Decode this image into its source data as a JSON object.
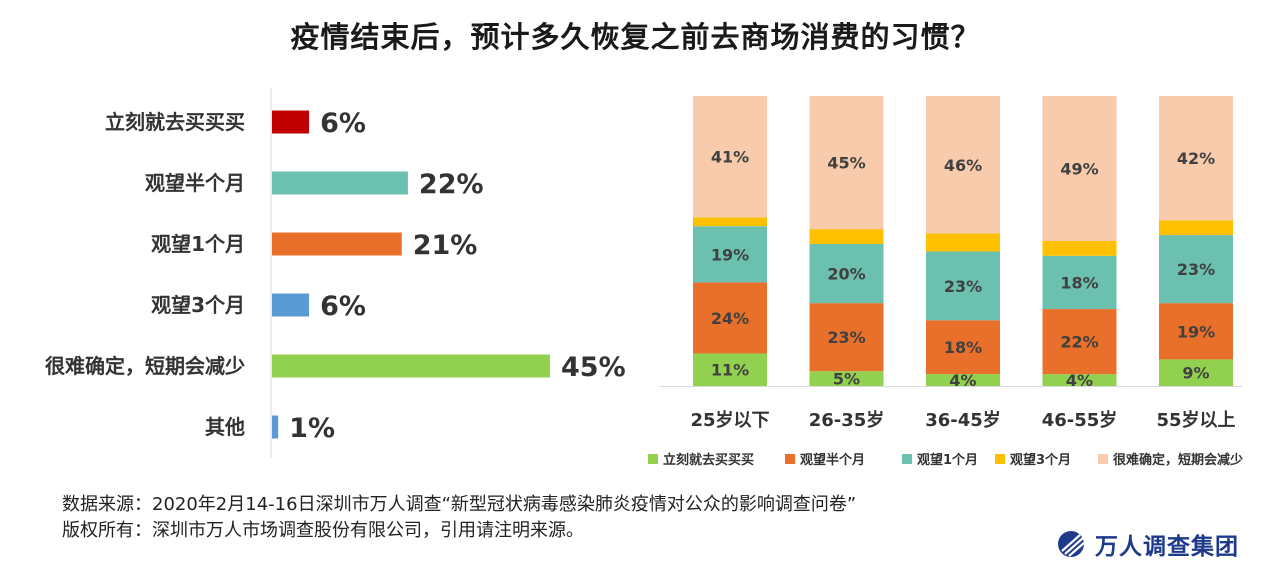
{
  "title": "疫情结束后，预计多久恢复之前去商场消费的习惯？",
  "chart_data": [
    {
      "type": "bar",
      "orientation": "horizontal",
      "categories": [
        "立刻就去买买买",
        "观望半个月",
        "观望1个月",
        "观望3个月",
        "很难确定，短期会减少",
        "其他"
      ],
      "values": [
        6,
        22,
        21,
        6,
        45,
        1
      ],
      "value_labels": [
        "6%",
        "22%",
        "21%",
        "6%",
        "45%",
        "1%"
      ],
      "colors": [
        "#C00000",
        "#6CC0B0",
        "#E8702A",
        "#5B9BD5",
        "#92D050",
        "#5B9BD5"
      ],
      "xlim": [
        0,
        45
      ],
      "grid": false
    },
    {
      "type": "bar",
      "stacked": true,
      "categories": [
        "25岁以下",
        "26-35岁",
        "36-45岁",
        "46-55岁",
        "55岁以上"
      ],
      "series": [
        {
          "name": "立刻就去买买买",
          "color": "#92D050",
          "values": [
            11,
            5,
            4,
            4,
            9
          ],
          "labels": [
            "11%",
            "5%",
            "4%",
            "4%",
            "9%"
          ]
        },
        {
          "name": "观望半个月",
          "color": "#E8702A",
          "values": [
            24,
            23,
            18,
            22,
            19
          ],
          "labels": [
            "24%",
            "23%",
            "18%",
            "22%",
            "19%"
          ]
        },
        {
          "name": "观望1个月",
          "color": "#6CC0B0",
          "values": [
            19,
            20,
            23,
            18,
            23
          ],
          "labels": [
            "19%",
            "20%",
            "23%",
            "18%",
            "23%"
          ]
        },
        {
          "name": "观望3个月",
          "color": "#FFC000",
          "values": [
            3,
            5,
            6,
            5,
            5
          ],
          "labels": [
            "",
            "",
            "",
            "",
            ""
          ]
        },
        {
          "name": "很难确定，短期会减少",
          "color": "#F7CBAC",
          "values": [
            41,
            45,
            46,
            49,
            42
          ],
          "labels": [
            "41%",
            "45%",
            "46%",
            "49%",
            "42%"
          ]
        }
      ],
      "legend": "bottom",
      "grid": false
    }
  ],
  "footer": {
    "source": "数据来源：2020年2月14-16日深圳市万人调查“新型冠状病毒感染肺炎疫情对公众的影响调查问卷”",
    "copyright": "版权所有：深圳市万人市场调查股份有限公司，引用请注明来源。"
  },
  "brand": {
    "name": "万人调查集团",
    "logo_icon": "globe-logo-icon",
    "logo_color": "#1F3A8A"
  }
}
